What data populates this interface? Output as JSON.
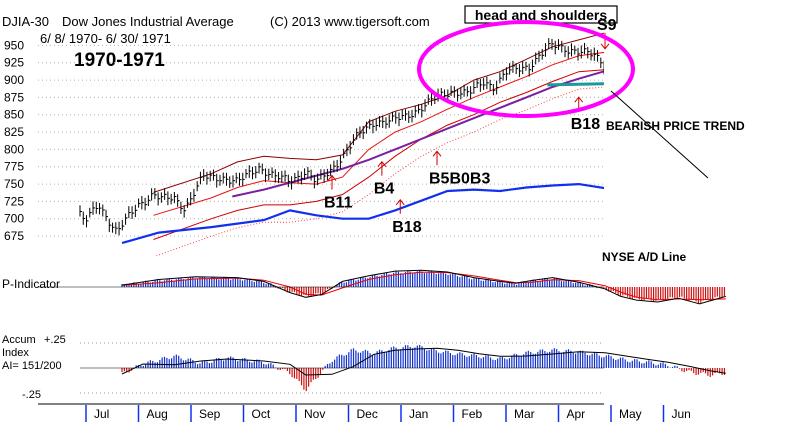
{
  "header": {
    "symbol": "DJIA-30",
    "name": "Dow Jones Industrial Average",
    "copyright": "(C) 2013 www.tigersoft.com",
    "date_range": "6/ 8/ 1970-  6/ 30/ 1971",
    "years": "1970-1971"
  },
  "chart_data": {
    "type": "line",
    "title": "DJIA-30 Dow Jones Industrial Average",
    "subtitle": "6/ 8/ 1970-  6/ 30/ 1971",
    "pattern_label": "head and shoulders",
    "ylim": [
      663,
      965
    ],
    "y_ticks": [
      950,
      925,
      900,
      875,
      850,
      825,
      800,
      775,
      750,
      725,
      700,
      675
    ],
    "x_month_labels": [
      "Jul",
      "Aug",
      "Sep",
      "Oct",
      "Nov",
      "Dec",
      "Jan",
      "Feb",
      "Mar",
      "Apr",
      "May",
      "Jun"
    ],
    "series": [
      {
        "name": "DJIA",
        "months": [
          0,
          0.1,
          0.35,
          0.7,
          1.1,
          1.4,
          1.55,
          1.8,
          2.0,
          2.35,
          2.7,
          3.0,
          3.4,
          3.7,
          4.0,
          4.3,
          4.5,
          4.75,
          5.0,
          5.3,
          5.6,
          5.9,
          6.2,
          6.5,
          6.8,
          7.1,
          7.4,
          7.7,
          7.9,
          8.1,
          8.3,
          8.55,
          8.75,
          9.0,
          9.3,
          9.55,
          9.8,
          10.05,
          10.35,
          10.6,
          10.8,
          11.0,
          11.2,
          11.6,
          11.8,
          12.1,
          12.3
        ],
        "values": [
          705,
          695,
          722,
          680,
          720,
          735,
          728,
          730,
          715,
          760,
          760,
          752,
          775,
          760,
          755,
          768,
          752,
          768,
          790,
          820,
          840,
          840,
          848,
          860,
          875,
          885,
          880,
          898,
          890,
          910,
          915,
          920,
          935,
          950,
          945,
          940,
          935,
          920,
          920,
          915,
          905,
          900,
          908,
          895,
          875,
          880,
          893
        ]
      },
      {
        "name": "Upper band",
        "months": [
          1.4,
          2.5,
          3.0,
          3.5,
          4.0,
          4.5,
          5.0,
          5.5,
          6.0,
          6.5,
          7.0,
          7.5,
          8.0,
          8.5,
          9.0,
          9.5,
          10.0,
          10.5,
          11.0,
          11.5,
          12.2
        ],
        "values": [
          738,
          765,
          782,
          790,
          787,
          785,
          792,
          840,
          855,
          865,
          878,
          900,
          912,
          930,
          948,
          958,
          968,
          955,
          945,
          930,
          912
        ]
      },
      {
        "name": "Middle band",
        "months": [
          1.4,
          2.5,
          3.0,
          3.5,
          4.0,
          4.5,
          5.0,
          5.5,
          6.0,
          6.5,
          7.0,
          7.5,
          8.0,
          8.5,
          9.0,
          9.5,
          10.0,
          10.5,
          11.0,
          11.5,
          12.2
        ],
        "values": [
          705,
          730,
          745,
          755,
          752,
          750,
          760,
          800,
          825,
          840,
          858,
          875,
          890,
          905,
          922,
          935,
          940,
          928,
          918,
          910,
          895
        ]
      },
      {
        "name": "Lower band",
        "months": [
          1.4,
          2.5,
          3.0,
          3.5,
          4.0,
          4.5,
          5.0,
          5.5,
          6.0,
          6.5,
          7.0,
          7.5,
          8.0,
          8.5,
          9.0,
          9.5,
          10.0,
          10.5,
          11.0,
          11.5,
          12.2
        ],
        "values": [
          670,
          700,
          712,
          720,
          720,
          725,
          735,
          760,
          790,
          815,
          835,
          850,
          868,
          882,
          898,
          912,
          915,
          905,
          895,
          888,
          878
        ]
      },
      {
        "name": "Moving average",
        "months": [
          2.9,
          3.5,
          4.0,
          4.5,
          5.0,
          5.5,
          6.0,
          6.5,
          7.0,
          7.5,
          8.0,
          8.5,
          9.0,
          9.5,
          10.0,
          10.5,
          11.0,
          11.5,
          12.3
        ],
        "values": [
          732,
          742,
          752,
          762,
          772,
          785,
          800,
          815,
          830,
          845,
          860,
          875,
          890,
          902,
          913,
          918,
          917,
          912,
          905
        ]
      },
      {
        "name": "NYSE A/D Line",
        "months": [
          0.8,
          1.5,
          2.5,
          3.5,
          4.0,
          4.5,
          5.0,
          5.5,
          6.0,
          6.5,
          7.0,
          7.5,
          8.0,
          8.5,
          9.0,
          9.5,
          10.0,
          10.5,
          11.0,
          11.5,
          11.9,
          12.3
        ],
        "values": [
          665,
          680,
          688,
          698,
          712,
          705,
          700,
          700,
          712,
          726,
          740,
          742,
          740,
          745,
          748,
          750,
          744,
          735,
          722,
          712,
          700,
          706
        ]
      }
    ],
    "neckline": {
      "months": [
        8.9,
        12.8
      ],
      "values": [
        893,
        899
      ]
    },
    "signals": [
      {
        "label": "B11",
        "type": "buy",
        "month": 4.8,
        "value": 745
      },
      {
        "label": "B4",
        "type": "buy",
        "month": 5.75,
        "value": 765
      },
      {
        "label": "B18",
        "type": "buy",
        "month": 6.1,
        "value": 710
      },
      {
        "label": "B5B0B3",
        "type": "buy",
        "month": 6.8,
        "value": 780
      },
      {
        "label": "B18",
        "type": "buy",
        "month": 9.5,
        "value": 858
      },
      {
        "label": "S9",
        "type": "sell",
        "month": 10.0,
        "value": 945
      }
    ],
    "annotations": {
      "bearish": "BEARISH PRICE TREND",
      "ad_line": "NYSE A/D Line"
    },
    "p_indicator": {
      "label": "P-Indicator",
      "months": [
        0.8,
        1.5,
        2.2,
        3.0,
        3.5,
        4.0,
        4.3,
        4.6,
        5.0,
        5.5,
        6.0,
        6.5,
        7.0,
        7.5,
        8.0,
        8.3,
        8.6,
        9.0,
        9.5,
        10.0,
        10.3,
        10.6,
        11.0,
        11.4,
        11.8,
        12.3
      ],
      "values": [
        0.1,
        0.4,
        0.55,
        0.5,
        0.3,
        -0.3,
        -0.55,
        -0.4,
        0.3,
        0.6,
        0.85,
        0.9,
        0.8,
        0.5,
        0.3,
        0.2,
        0.35,
        0.5,
        0.25,
        -0.1,
        -0.5,
        -0.7,
        -0.8,
        -0.6,
        -0.9,
        -0.5
      ]
    },
    "accum_index": {
      "label_line1": "Accum",
      "label_line2": "Index",
      "label_line3": "AI= 151/200",
      "ylabels": [
        "+.25",
        "0",
        "-.25"
      ],
      "months": [
        0.8,
        1.2,
        1.8,
        2.3,
        2.8,
        3.5,
        4.0,
        4.3,
        4.8,
        5.2,
        5.6,
        6.0,
        6.4,
        6.8,
        7.2,
        7.6,
        8.0,
        8.5,
        9.0,
        9.5,
        10.0,
        10.4,
        10.8,
        11.2,
        11.6,
        12.0,
        12.3
      ],
      "values": [
        -0.06,
        0.04,
        0.12,
        0.05,
        0.1,
        0.06,
        -0.05,
        -0.22,
        0.08,
        0.18,
        0.15,
        0.2,
        0.22,
        0.17,
        0.14,
        0.12,
        0.09,
        0.15,
        0.18,
        0.16,
        0.12,
        0.08,
        0.06,
        0.03,
        -0.04,
        -0.07,
        -0.05
      ]
    }
  }
}
